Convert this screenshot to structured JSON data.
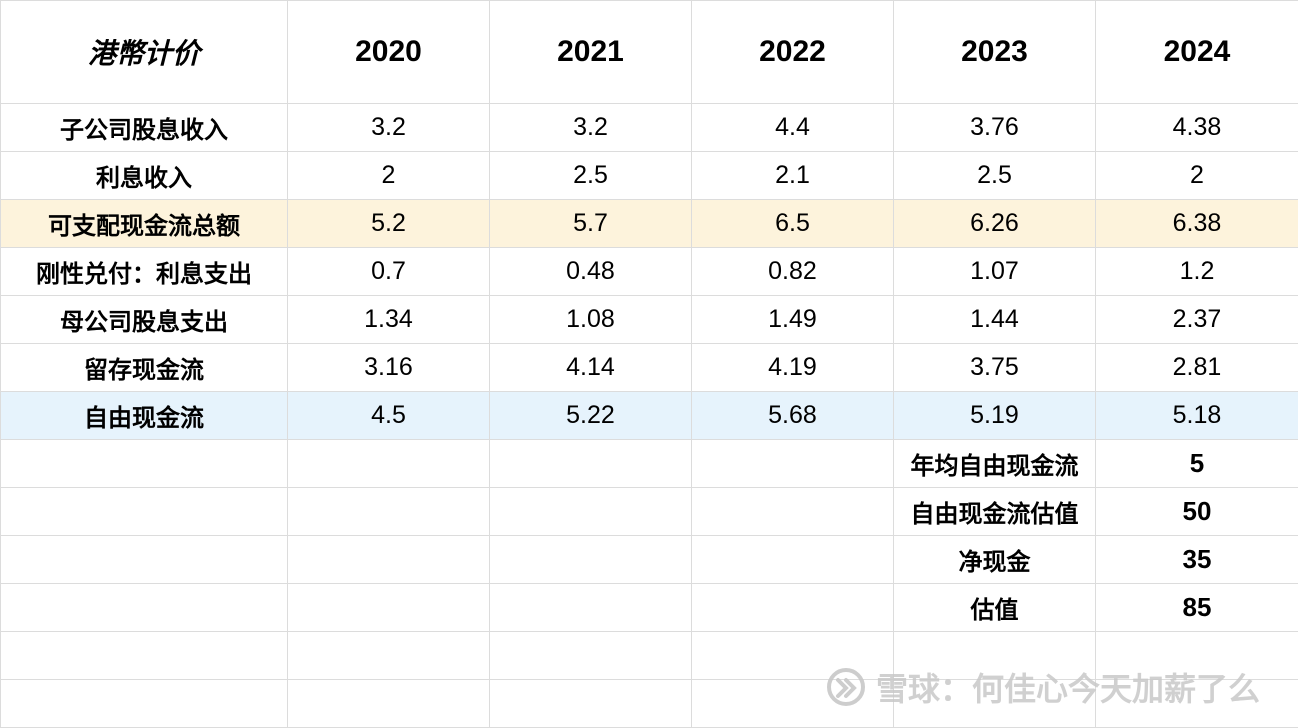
{
  "header": {
    "currency_label": "港幣计价",
    "years": [
      "2020",
      "2021",
      "2022",
      "2023",
      "2024"
    ]
  },
  "rows": [
    {
      "label": "子公司股息收入",
      "values": [
        "3.2",
        "3.2",
        "4.4",
        "3.76",
        "4.38"
      ],
      "highlight": ""
    },
    {
      "label": "利息收入",
      "values": [
        "2",
        "2.5",
        "2.1",
        "2.5",
        "2"
      ],
      "highlight": ""
    },
    {
      "label": "可支配现金流总额",
      "values": [
        "5.2",
        "5.7",
        "6.5",
        "6.26",
        "6.38"
      ],
      "highlight": "yellow"
    },
    {
      "label": "刚性兑付：利息支出",
      "values": [
        "0.7",
        "0.48",
        "0.82",
        "1.07",
        "1.2"
      ],
      "highlight": ""
    },
    {
      "label": "母公司股息支出",
      "values": [
        "1.34",
        "1.08",
        "1.49",
        "1.44",
        "2.37"
      ],
      "highlight": ""
    },
    {
      "label": "留存现金流",
      "values": [
        "3.16",
        "4.14",
        "4.19",
        "3.75",
        "2.81"
      ],
      "highlight": ""
    },
    {
      "label": "自由现金流",
      "values": [
        "4.5",
        "5.22",
        "5.68",
        "5.19",
        "5.18"
      ],
      "highlight": "blue"
    }
  ],
  "summary": [
    {
      "label": "年均自由现金流",
      "value": "5"
    },
    {
      "label": "自由现金流估值",
      "value": "50"
    },
    {
      "label": "净现金",
      "value": "35"
    },
    {
      "label": "估值",
      "value": "85"
    }
  ],
  "watermark": {
    "text": "雪球：何佳心今天加薪了么",
    "logo_icon": "snowball-logo-icon"
  },
  "colors": {
    "currency_label": "#c00000",
    "highlight_yellow": "#fdf3dc",
    "highlight_blue": "#e6f3fc",
    "grid": "#dcdcdc"
  }
}
